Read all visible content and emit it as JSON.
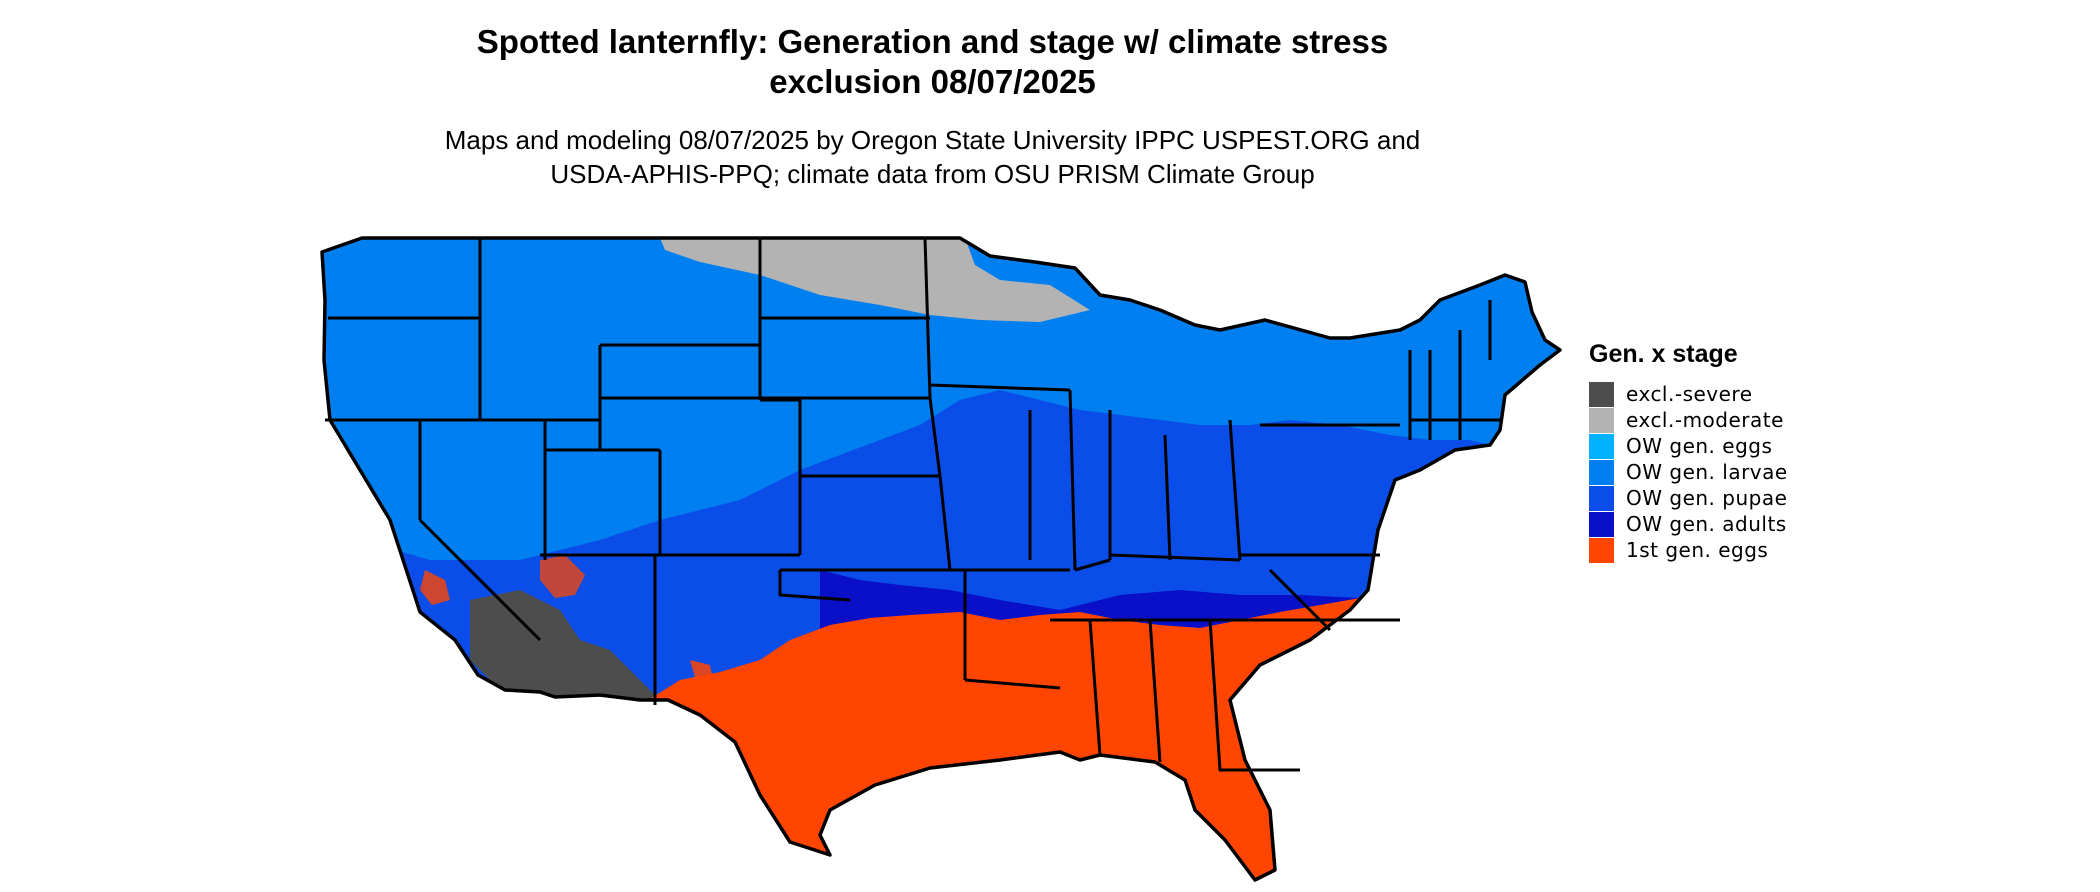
{
  "title_line1": "Spotted lanternfly: Generation and stage w/ climate stress",
  "title_line2": "exclusion 08/07/2025",
  "subtitle_line1": "Maps and modeling 08/07/2025 by Oregon State University IPPC USPEST.ORG and",
  "subtitle_line2": "USDA-APHIS-PPQ; climate data from OSU PRISM Climate Group",
  "legend": {
    "title": "Gen. x stage",
    "items": [
      {
        "label": "excl.-severe",
        "color": "#4d4d4d"
      },
      {
        "label": "excl.-moderate",
        "color": "#b3b3b3"
      },
      {
        "label": "OW gen. eggs",
        "color": "#00b2ff"
      },
      {
        "label": "OW gen. larvae",
        "color": "#0080f0"
      },
      {
        "label": "OW gen. pupae",
        "color": "#0a4de8"
      },
      {
        "label": "OW gen. adults",
        "color": "#0a10c8"
      },
      {
        "label": "1st gen. eggs",
        "color": "#ff4500"
      }
    ]
  },
  "colors": {
    "border": "#000000"
  }
}
